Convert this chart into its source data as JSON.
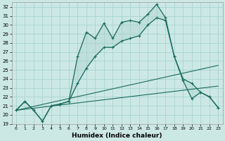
{
  "xlabel": "Humidex (Indice chaleur)",
  "xlim": [
    -0.5,
    23.5
  ],
  "ylim": [
    19,
    32.5
  ],
  "yticks": [
    19,
    20,
    21,
    22,
    23,
    24,
    25,
    26,
    27,
    28,
    29,
    30,
    31,
    32
  ],
  "xticks": [
    0,
    1,
    2,
    3,
    4,
    5,
    6,
    7,
    8,
    9,
    10,
    11,
    12,
    13,
    14,
    15,
    16,
    17,
    18,
    19,
    20,
    21,
    22,
    23
  ],
  "bg_color": "#cce8e5",
  "line_color": "#1a6b5e",
  "grid_color": "#a8d4d0",
  "upper_x": [
    0,
    1,
    2,
    3,
    4,
    5,
    6,
    7,
    8,
    9,
    10,
    11,
    12,
    13,
    14,
    15,
    16,
    17,
    18,
    19,
    20,
    21,
    22,
    23
  ],
  "upper_y": [
    20.5,
    21.5,
    20.5,
    19.3,
    21.0,
    21.2,
    21.5,
    26.5,
    29.2,
    28.5,
    30.2,
    28.5,
    30.3,
    30.5,
    30.3,
    31.2,
    32.3,
    30.8,
    26.5,
    23.8,
    21.8,
    22.5,
    22.0,
    20.8
  ],
  "lower_x": [
    0,
    1,
    2,
    3,
    4,
    5,
    6,
    7,
    8,
    9,
    10,
    11,
    12,
    13,
    14,
    15,
    16,
    17,
    18,
    19,
    20,
    21,
    22,
    23
  ],
  "lower_y": [
    20.5,
    21.5,
    20.5,
    19.3,
    21.0,
    21.2,
    21.5,
    23.5,
    25.2,
    26.5,
    27.5,
    27.5,
    28.2,
    28.5,
    28.8,
    30.0,
    30.8,
    30.5,
    26.5,
    24.0,
    23.5,
    22.5,
    22.0,
    20.8
  ],
  "line1_x": [
    0,
    23
  ],
  "line1_y": [
    20.5,
    25.5
  ],
  "line2_x": [
    0,
    23
  ],
  "line2_y": [
    20.5,
    23.2
  ]
}
